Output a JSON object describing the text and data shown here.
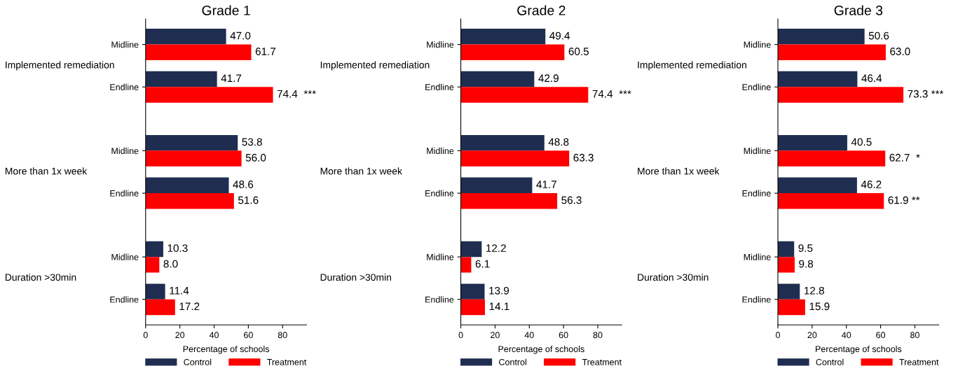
{
  "chart_data": [
    {
      "type": "bar",
      "orientation": "horizontal",
      "title": "Grade 1",
      "xlabel": "Percentage of schools",
      "categories": [
        "Midline",
        "Endline",
        "Midline",
        "Endline",
        "Midline",
        "Endline"
      ],
      "annotations": [
        "Implemented remediation",
        "More than 1x week",
        "Duration >30min"
      ],
      "xlim": [
        0,
        94
      ],
      "xticks": [
        0,
        20,
        40,
        60,
        80
      ],
      "grid": false,
      "legend": "bottom",
      "series": [
        {
          "name": "Control",
          "color": "#1f2d50",
          "values": [
            47.0,
            41.7,
            53.8,
            48.6,
            10.3,
            11.4
          ],
          "value_labels": [
            "47.0",
            "41.7",
            "53.8",
            "48.6",
            "10.3",
            "11.4"
          ]
        },
        {
          "name": "Treatment",
          "color": "#ff0000",
          "values": [
            61.7,
            74.4,
            56.0,
            51.6,
            8.0,
            17.2
          ],
          "value_labels": [
            "61.7",
            "74.4  ***",
            "56.0",
            "51.6",
            "8.0",
            "17.2"
          ]
        }
      ]
    },
    {
      "type": "bar",
      "orientation": "horizontal",
      "title": "Grade 2",
      "xlabel": "Percentage of schools",
      "categories": [
        "Midline",
        "Endline",
        "Midline",
        "Endline",
        "Midline",
        "Endline"
      ],
      "annotations": [
        "Implemented remediation",
        "More than 1x week",
        "Duration >30min"
      ],
      "xlim": [
        0,
        94
      ],
      "xticks": [
        0,
        20,
        40,
        60,
        80
      ],
      "grid": false,
      "legend": "bottom",
      "series": [
        {
          "name": "Control",
          "color": "#1f2d50",
          "values": [
            49.4,
            42.9,
            48.8,
            41.7,
            12.2,
            13.9
          ],
          "value_labels": [
            "49.4",
            "42.9",
            "48.8",
            "41.7",
            "12.2",
            "13.9"
          ]
        },
        {
          "name": "Treatment",
          "color": "#ff0000",
          "values": [
            60.5,
            74.4,
            63.3,
            56.3,
            6.1,
            14.1
          ],
          "value_labels": [
            "60.5",
            "74.4  ***",
            "63.3",
            "56.3",
            "6.1",
            "14.1"
          ]
        }
      ]
    },
    {
      "type": "bar",
      "orientation": "horizontal",
      "title": "Grade 3",
      "xlabel": "Percentage of schools",
      "categories": [
        "Midline",
        "Endline",
        "Midline",
        "Endline",
        "Midline",
        "Endline"
      ],
      "annotations": [
        "Implemented remediation",
        "More than 1x week",
        "Duration >30min"
      ],
      "xlim": [
        0,
        94
      ],
      "xticks": [
        0,
        20,
        40,
        60,
        80
      ],
      "grid": false,
      "legend": "bottom",
      "series": [
        {
          "name": "Control",
          "color": "#1f2d50",
          "values": [
            50.6,
            46.4,
            40.5,
            46.2,
            9.5,
            12.8
          ],
          "value_labels": [
            "50.6",
            "46.4",
            "40.5",
            "46.2",
            "9.5",
            "12.8"
          ]
        },
        {
          "name": "Treatment",
          "color": "#ff0000",
          "values": [
            63.0,
            73.3,
            62.7,
            61.9,
            9.8,
            15.9
          ],
          "value_labels": [
            "63.0",
            "73.3 ***",
            "62.7  *",
            "61.9 **",
            "9.8",
            "15.9"
          ]
        }
      ]
    }
  ]
}
